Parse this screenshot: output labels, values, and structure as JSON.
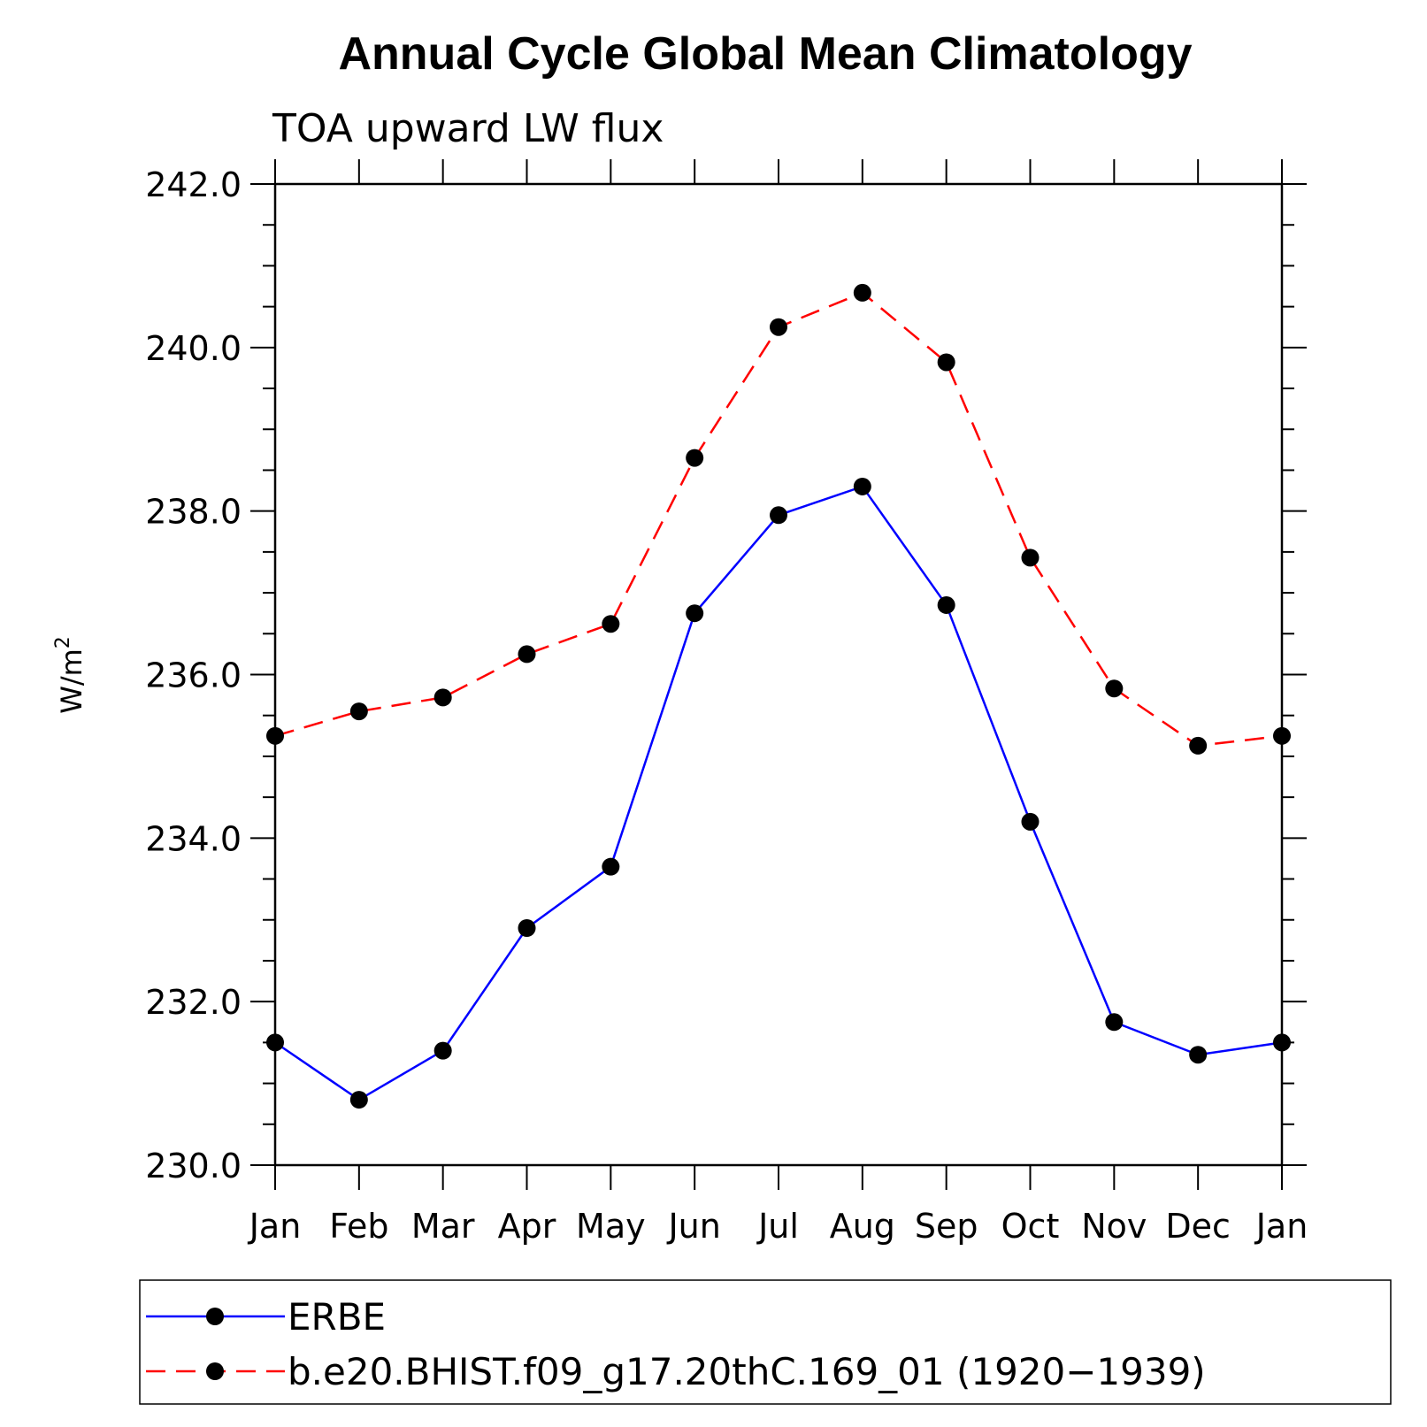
{
  "chart_data": {
    "type": "line",
    "title": "Annual Cycle Global Mean Climatology",
    "subtitle": "TOA upward LW flux",
    "ylabel": "W/m",
    "ylabel_sup": "2",
    "xlabel": "",
    "categories": [
      "Jan",
      "Feb",
      "Mar",
      "Apr",
      "May",
      "Jun",
      "Jul",
      "Aug",
      "Sep",
      "Oct",
      "Nov",
      "Dec",
      "Jan"
    ],
    "ylim": [
      230.0,
      242.0
    ],
    "yticks": [
      "230.0",
      "232.0",
      "234.0",
      "236.0",
      "238.0",
      "240.0",
      "242.0"
    ],
    "grid": false,
    "legend_position": "bottom",
    "series": [
      {
        "name": "ERBE",
        "color": "#0000ff",
        "dash": "solid",
        "values": [
          231.5,
          230.8,
          231.4,
          232.9,
          233.65,
          236.75,
          237.95,
          238.3,
          236.85,
          234.2,
          231.75,
          231.35,
          231.5
        ]
      },
      {
        "name": "b.e20.BHIST.f09_g17.20thC.169_01 (1920−1939)",
        "color": "#ff0000",
        "dash": "dashed",
        "values": [
          235.25,
          235.55,
          235.72,
          236.25,
          236.62,
          238.65,
          240.25,
          240.67,
          239.82,
          237.43,
          235.83,
          235.13,
          235.25
        ]
      }
    ]
  }
}
